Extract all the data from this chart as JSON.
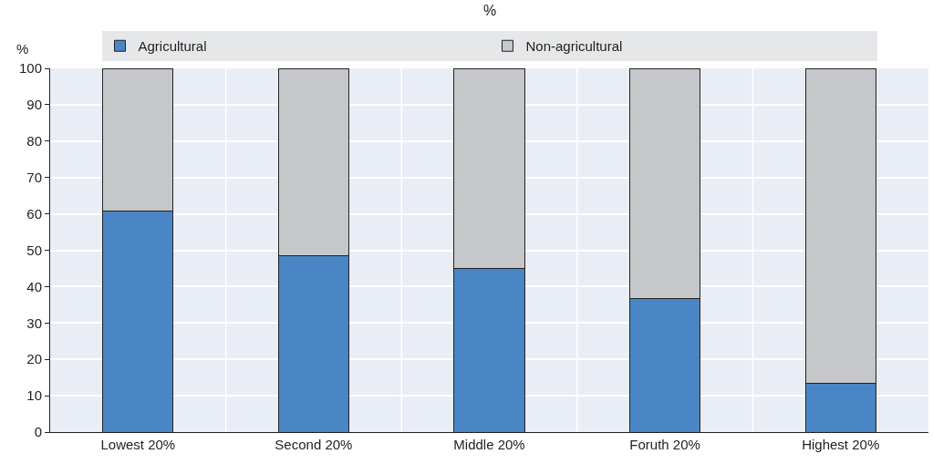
{
  "chart_data": {
    "type": "bar",
    "subtitle": "%",
    "ylabel": "%",
    "categories": [
      "Lowest 20%",
      "Second 20%",
      "Middle 20%",
      "Foruth 20%",
      "Highest 20%"
    ],
    "series": [
      {
        "name": "Agricultural",
        "color": "#4a86c5",
        "values": [
          60.7,
          48.4,
          45,
          36.6,
          13.5
        ]
      },
      {
        "name": "Non-agricultural",
        "color": "#c6c7ca",
        "values": [
          39.3,
          51.6,
          55,
          63.4,
          86.5
        ]
      }
    ],
    "stacked": true,
    "ylim": [
      0,
      100
    ],
    "yticks": [
      0,
      10,
      20,
      30,
      40,
      50,
      60,
      70,
      80,
      90,
      100
    ],
    "grid": true,
    "legend": "top"
  }
}
